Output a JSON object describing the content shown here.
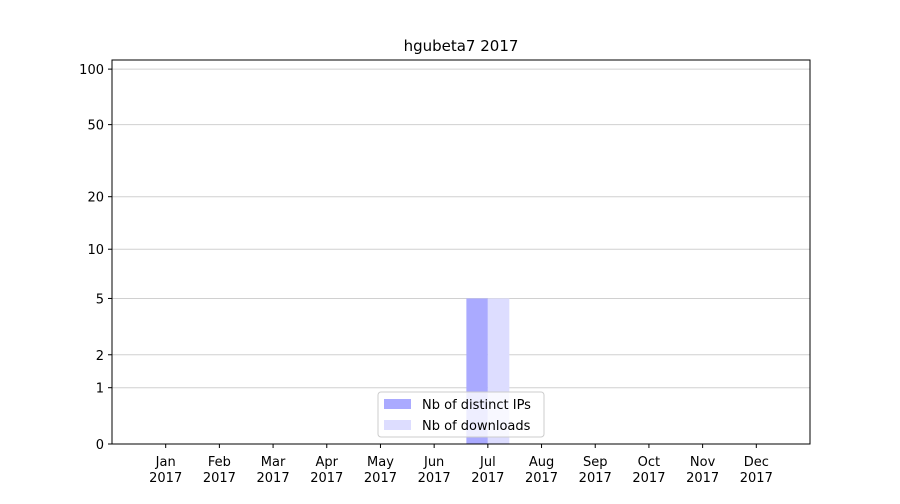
{
  "chart_data": {
    "type": "bar",
    "title": "hgubeta7 2017",
    "categories": [
      [
        "Jan",
        "2017"
      ],
      [
        "Feb",
        "2017"
      ],
      [
        "Mar",
        "2017"
      ],
      [
        "Apr",
        "2017"
      ],
      [
        "May",
        "2017"
      ],
      [
        "Jun",
        "2017"
      ],
      [
        "Jul",
        "2017"
      ],
      [
        "Aug",
        "2017"
      ],
      [
        "Sep",
        "2017"
      ],
      [
        "Oct",
        "2017"
      ],
      [
        "Nov",
        "2017"
      ],
      [
        "Dec",
        "2017"
      ]
    ],
    "series": [
      {
        "name": "Nb of distinct IPs",
        "color": "#aaaaff",
        "values": [
          0,
          0,
          0,
          0,
          0,
          0,
          5,
          0,
          0,
          0,
          0,
          0
        ]
      },
      {
        "name": "Nb of downloads",
        "color": "#ddddff",
        "values": [
          0,
          0,
          0,
          0,
          0,
          0,
          5,
          0,
          0,
          0,
          0,
          0
        ]
      }
    ],
    "ylim": [
      0,
      112
    ],
    "yticks": [
      0,
      1,
      2,
      5,
      10,
      20,
      50,
      100
    ],
    "yscale": "log1p",
    "grid": true,
    "legend": "lower center"
  }
}
